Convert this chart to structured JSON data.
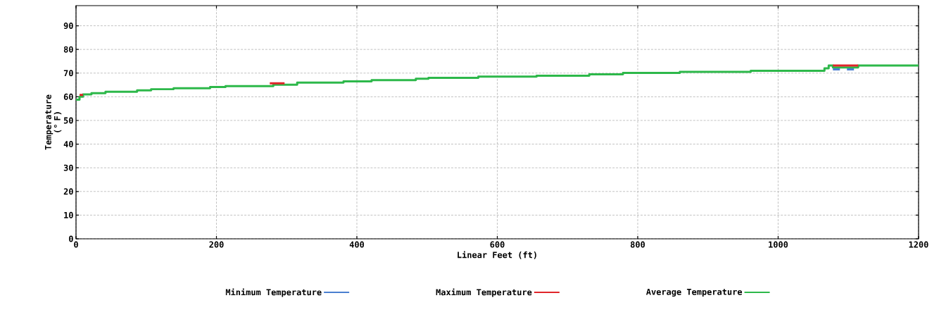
{
  "chart_data": {
    "type": "step",
    "xlabel": "Linear Feet (ft)",
    "ylabel": "Temperature (° F)",
    "xlim": [
      0,
      1200
    ],
    "ylim": [
      0,
      98.5
    ],
    "xticks": [
      0,
      200,
      400,
      600,
      800,
      1000,
      1200
    ],
    "yticks": [
      0,
      10,
      20,
      30,
      40,
      50,
      60,
      70,
      80,
      90
    ],
    "grid": true,
    "legend": "bottom",
    "marker": "none",
    "line_style": "solid",
    "series": [
      {
        "name": "Minimum Temperature",
        "color": "#4a7fd0",
        "x": [
          1078,
          1088,
          1093,
          1098,
          1108
        ],
        "values": [
          71.6,
          71.6,
          null,
          71.6,
          71.6
        ]
      },
      {
        "name": "Maximum Temperature",
        "color": "#e0252a",
        "x": [
          5,
          10,
          100,
          276,
          297,
          700,
          1078,
          1114
        ],
        "values": [
          60.8,
          60.8,
          null,
          65.7,
          65.7,
          null,
          73.2,
          73.2
        ]
      },
      {
        "name": "Average Temperature",
        "color": "#2db84a",
        "x": [
          0,
          5,
          10,
          22,
          42,
          87,
          107,
          139,
          191,
          213,
          281,
          315,
          381,
          421,
          484,
          502,
          573,
          656,
          731,
          779,
          860,
          961,
          1060,
          1066,
          1072,
          1078,
          1114,
          1200
        ],
        "values": [
          58.8,
          60.0,
          61.0,
          61.5,
          62.1,
          62.7,
          63.2,
          63.6,
          64.1,
          64.5,
          65.1,
          66.0,
          66.5,
          67.0,
          67.6,
          68.0,
          68.5,
          68.9,
          69.5,
          70.1,
          70.5,
          71.0,
          71.0,
          72.0,
          73.2,
          72.4,
          73.2,
          73.2
        ]
      }
    ]
  }
}
